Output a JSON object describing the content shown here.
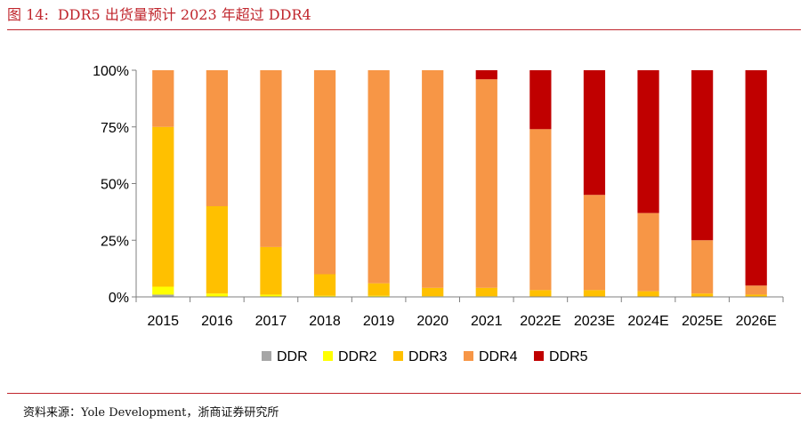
{
  "figure": {
    "label": "图 14:",
    "title": "DDR5 出货量预计 2023 年超过 DDR4"
  },
  "source": "资料来源：Yole Development，浙商证券研究所",
  "colors": {
    "title": "#c0262d",
    "DDR": "#a6a6a6",
    "DDR2": "#ffff00",
    "DDR3": "#ffc000",
    "DDR4": "#f79646",
    "DDR5": "#c00000"
  },
  "chart_data": {
    "type": "bar",
    "stacked": true,
    "title": "",
    "xlabel": "",
    "ylabel": "",
    "ylim": [
      0,
      100
    ],
    "yticks": [
      "0%",
      "25%",
      "50%",
      "75%",
      "100%"
    ],
    "categories": [
      "2015",
      "2016",
      "2017",
      "2018",
      "2019",
      "2020",
      "2021",
      "2022E",
      "2023E",
      "2024E",
      "2025E",
      "2026E"
    ],
    "series": [
      {
        "name": "DDR",
        "color": "#a6a6a6",
        "values": [
          1,
          0,
          0,
          0,
          0,
          0,
          0,
          0,
          0,
          0,
          0,
          0
        ]
      },
      {
        "name": "DDR2",
        "color": "#ffff00",
        "values": [
          3.5,
          1.5,
          1,
          0.5,
          0.5,
          0.3,
          0.3,
          0.2,
          0.2,
          0.2,
          0.1,
          0.1
        ]
      },
      {
        "name": "DDR3",
        "color": "#ffc000",
        "values": [
          70.5,
          38.5,
          21,
          9.5,
          5.5,
          3.7,
          3.7,
          2.8,
          2.8,
          2.3,
          1.4,
          0.9
        ]
      },
      {
        "name": "DDR4",
        "color": "#f79646",
        "values": [
          25,
          60,
          78,
          90,
          94,
          96,
          92,
          71,
          42,
          34.5,
          23.5,
          4
        ]
      },
      {
        "name": "DDR5",
        "color": "#c00000",
        "values": [
          0,
          0,
          0,
          0,
          0,
          0,
          4,
          26,
          55,
          63,
          75,
          95
        ]
      }
    ],
    "grid": false,
    "legend_position": "bottom"
  }
}
